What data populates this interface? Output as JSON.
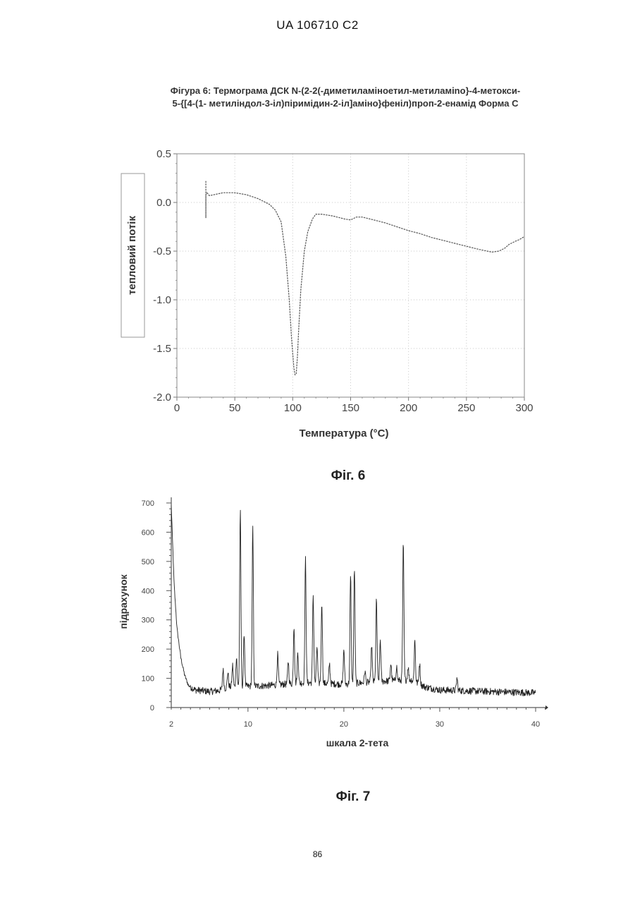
{
  "header": {
    "patent": "UA   106710   C2"
  },
  "figure6": {
    "title_line1": "Фігура 6: Термограма ДСК N-(2-2(-диметиламіноетил-метиламіno}-4-метокси-",
    "title_line2": "5-{[4-(1- метиліндол-3-іл)піримідин-2-іл]аміно}феніл)проп-2-енамід Форма С",
    "caption": "Фіг. 6"
  },
  "figure7": {
    "caption": "Фіг. 7"
  },
  "page_number": "86",
  "chart_data": [
    {
      "type": "line",
      "title": "",
      "xlabel": "Температура (°C)",
      "ylabel": "тепловий потік",
      "xlim": [
        0,
        300
      ],
      "ylim": [
        -2.0,
        0.5
      ],
      "x_ticks": [
        "0",
        "50",
        "100",
        "150",
        "200",
        "250",
        "300"
      ],
      "y_ticks": [
        "0.5",
        "0.0",
        "-0.5",
        "-1.0",
        "-1.5",
        "-2.0"
      ],
      "grid": true,
      "color": "#555555",
      "series": [
        {
          "x": [
            25,
            25,
            25,
            26,
            28,
            32,
            40,
            50,
            60,
            70,
            80,
            85,
            90,
            94,
            97,
            99,
            101,
            102,
            103,
            104,
            105,
            107,
            110,
            113,
            117,
            120,
            125,
            135,
            145,
            150,
            155,
            160,
            170,
            180,
            190,
            200,
            210,
            220,
            230,
            240,
            250,
            260,
            268,
            272,
            278,
            283,
            287,
            292,
            296,
            300
          ],
          "y": [
            0.22,
            -0.16,
            0.08,
            0.1,
            0.07,
            0.08,
            0.1,
            0.1,
            0.08,
            0.04,
            -0.02,
            -0.08,
            -0.2,
            -0.55,
            -1.0,
            -1.4,
            -1.7,
            -1.77,
            -1.76,
            -1.6,
            -1.35,
            -0.9,
            -0.5,
            -0.3,
            -0.17,
            -0.12,
            -0.12,
            -0.14,
            -0.17,
            -0.18,
            -0.15,
            -0.15,
            -0.18,
            -0.21,
            -0.25,
            -0.29,
            -0.32,
            -0.36,
            -0.39,
            -0.42,
            -0.45,
            -0.48,
            -0.5,
            -0.51,
            -0.5,
            -0.47,
            -0.43,
            -0.4,
            -0.38,
            -0.35
          ]
        }
      ]
    },
    {
      "type": "line",
      "title": "",
      "xlabel": "шкала 2-тета",
      "ylabel": "підрахунок",
      "xlim": [
        2,
        40
      ],
      "ylim": [
        0,
        700
      ],
      "x_ticks": [
        "2",
        "10",
        "20",
        "30",
        "40"
      ],
      "y_ticks": [
        "700",
        "600",
        "500",
        "400",
        "300",
        "200",
        "100",
        "0"
      ],
      "grid": false,
      "color": "#222222",
      "baseline": [
        [
          2.0,
          690
        ],
        [
          2.3,
          420
        ],
        [
          2.6,
          270
        ],
        [
          3.0,
          170
        ],
        [
          3.4,
          110
        ],
        [
          3.8,
          75
        ],
        [
          4.5,
          60
        ],
        [
          6.0,
          55
        ],
        [
          7.0,
          58
        ],
        [
          8.0,
          70
        ],
        [
          12.0,
          75
        ],
        [
          16.0,
          85
        ],
        [
          20.0,
          80
        ],
        [
          24.0,
          90
        ],
        [
          27.0,
          95
        ],
        [
          28.5,
          70
        ],
        [
          30.0,
          60
        ],
        [
          35.0,
          55
        ],
        [
          40.0,
          50
        ]
      ],
      "peaks": [
        {
          "x": 7.4,
          "height": 130
        },
        {
          "x": 7.9,
          "height": 120
        },
        {
          "x": 8.4,
          "height": 145
        },
        {
          "x": 8.8,
          "height": 175
        },
        {
          "x": 9.2,
          "height": 672
        },
        {
          "x": 9.6,
          "height": 255
        },
        {
          "x": 10.5,
          "height": 612
        },
        {
          "x": 13.1,
          "height": 182
        },
        {
          "x": 14.2,
          "height": 160
        },
        {
          "x": 14.8,
          "height": 280
        },
        {
          "x": 15.2,
          "height": 190
        },
        {
          "x": 16.0,
          "height": 510
        },
        {
          "x": 16.8,
          "height": 385
        },
        {
          "x": 17.2,
          "height": 210
        },
        {
          "x": 17.7,
          "height": 362
        },
        {
          "x": 18.5,
          "height": 150
        },
        {
          "x": 20.0,
          "height": 200
        },
        {
          "x": 20.7,
          "height": 450
        },
        {
          "x": 21.1,
          "height": 478
        },
        {
          "x": 22.2,
          "height": 125
        },
        {
          "x": 22.9,
          "height": 215
        },
        {
          "x": 23.4,
          "height": 368
        },
        {
          "x": 23.8,
          "height": 232
        },
        {
          "x": 24.9,
          "height": 150
        },
        {
          "x": 25.5,
          "height": 140
        },
        {
          "x": 26.2,
          "height": 560
        },
        {
          "x": 26.7,
          "height": 140
        },
        {
          "x": 27.4,
          "height": 230
        },
        {
          "x": 27.9,
          "height": 150
        },
        {
          "x": 31.8,
          "height": 100
        }
      ]
    }
  ]
}
